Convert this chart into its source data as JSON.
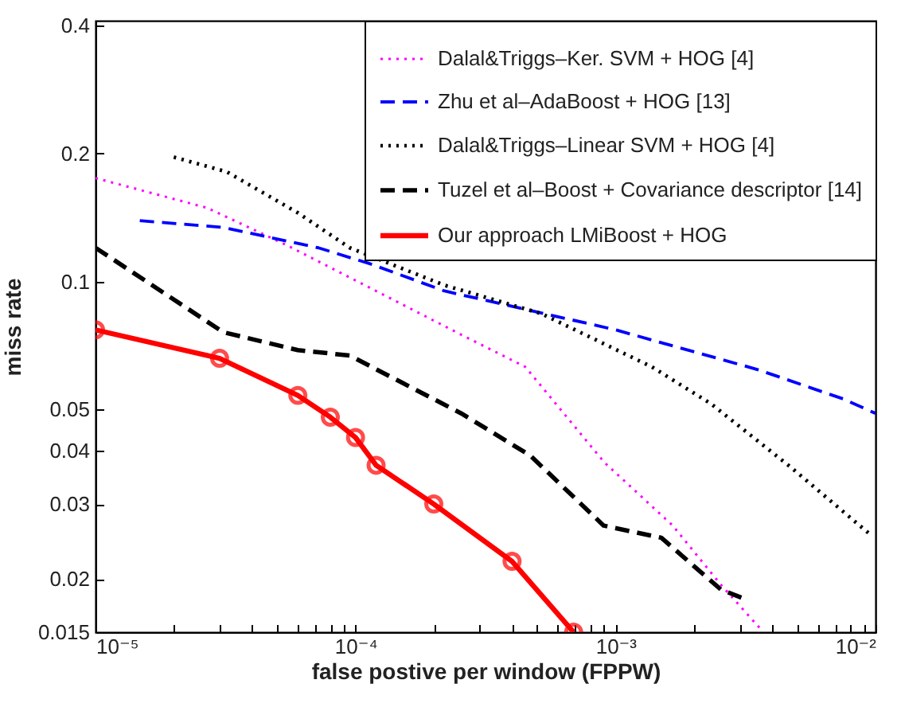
{
  "chart_data": {
    "type": "line",
    "xlabel": "false postive per window (FPPW)",
    "ylabel": "miss rate",
    "log": "xy",
    "grid": false,
    "legend": "top right",
    "xlim": [
      1e-05,
      0.01
    ],
    "ylim": [
      0.015,
      0.41
    ],
    "xticks": [
      {
        "value": 1e-05,
        "label": "10⁻⁵"
      },
      {
        "value": 2e-05,
        "label": null
      },
      {
        "value": 3e-05,
        "label": null
      },
      {
        "value": 4e-05,
        "label": null
      },
      {
        "value": 5e-05,
        "label": null
      },
      {
        "value": 6e-05,
        "label": null
      },
      {
        "value": 7e-05,
        "label": null
      },
      {
        "value": 8e-05,
        "label": null
      },
      {
        "value": 9e-05,
        "label": null
      },
      {
        "value": 0.0001,
        "label": "10⁻⁴"
      },
      {
        "value": 0.0002,
        "label": null
      },
      {
        "value": 0.0003,
        "label": null
      },
      {
        "value": 0.0004,
        "label": null
      },
      {
        "value": 0.0005,
        "label": null
      },
      {
        "value": 0.0006,
        "label": null
      },
      {
        "value": 0.0007,
        "label": null
      },
      {
        "value": 0.0008,
        "label": null
      },
      {
        "value": 0.0009,
        "label": null
      },
      {
        "value": 0.001,
        "label": "10⁻³"
      },
      {
        "value": 0.002,
        "label": null
      },
      {
        "value": 0.003,
        "label": null
      },
      {
        "value": 0.004,
        "label": null
      },
      {
        "value": 0.005,
        "label": null
      },
      {
        "value": 0.006,
        "label": null
      },
      {
        "value": 0.007,
        "label": null
      },
      {
        "value": 0.008,
        "label": null
      },
      {
        "value": 0.009,
        "label": null
      },
      {
        "value": 0.01,
        "label": "10⁻²"
      }
    ],
    "yticks": [
      0.015,
      0.02,
      0.03,
      0.04,
      0.05,
      0.1,
      0.2,
      0.4
    ],
    "series": [
      {
        "name": "Dalal&Triggs–Ker. SVM + HOG [4]",
        "color": "#ff00ff",
        "line_style": "dotted",
        "marker": "none",
        "x": [
          1e-05,
          2.68e-05,
          5.4e-05,
          0.000255,
          0.00045,
          0.000905,
          0.00166,
          0.00254,
          0.0036
        ],
        "values": [
          0.175,
          0.149,
          0.122,
          0.075,
          0.063,
          0.0376,
          0.0267,
          0.0194,
          0.0153
        ]
      },
      {
        "name": "Zhu et al–AdaBoost + HOG [13]",
        "color": "#0000ff",
        "line_style": "dashed",
        "marker": "none",
        "x": [
          1.48e-05,
          3.1e-05,
          7.2e-05,
          0.000114,
          0.00022,
          0.001,
          0.00355,
          0.0075,
          0.01
        ],
        "values": [
          0.139,
          0.134,
          0.12,
          0.11,
          0.095,
          0.077,
          0.062,
          0.053,
          0.049
        ]
      },
      {
        "name": "Dalal&Triggs–Linear SVM + HOG [4]",
        "color": "#000000",
        "line_style": "dotted",
        "marker": "none",
        "x": [
          2e-05,
          3.2e-05,
          6e-05,
          9.5e-05,
          0.00022,
          0.00052,
          0.00138,
          0.00233,
          0.0047,
          0.0095
        ],
        "values": [
          0.196,
          0.181,
          0.145,
          0.12,
          0.098,
          0.084,
          0.063,
          0.0516,
          0.0367,
          0.0255
        ]
      },
      {
        "name": "Tuzel et al–Boost + Covariance descriptor [14]",
        "color": "#000000",
        "line_style": "dashed",
        "marker": "none",
        "x": [
          1e-05,
          3.1e-05,
          6e-05,
          9.5e-05,
          0.000255,
          0.00047,
          0.0009,
          0.0015,
          0.00254,
          0.0031
        ],
        "values": [
          0.12,
          0.076,
          0.069,
          0.067,
          0.049,
          0.039,
          0.0267,
          0.025,
          0.0189,
          0.018
        ]
      },
      {
        "name": "Our approach LMiBoost + HOG",
        "color": "#ff0000",
        "line_style": "solid",
        "marker": "circle",
        "x": [
          1e-05,
          3e-05,
          6e-05,
          8e-05,
          0.0001,
          0.00012,
          0.0002,
          0.0004,
          0.00069
        ],
        "values": [
          0.077,
          0.066,
          0.054,
          0.048,
          0.043,
          0.037,
          0.03,
          0.022,
          0.015
        ]
      }
    ]
  }
}
